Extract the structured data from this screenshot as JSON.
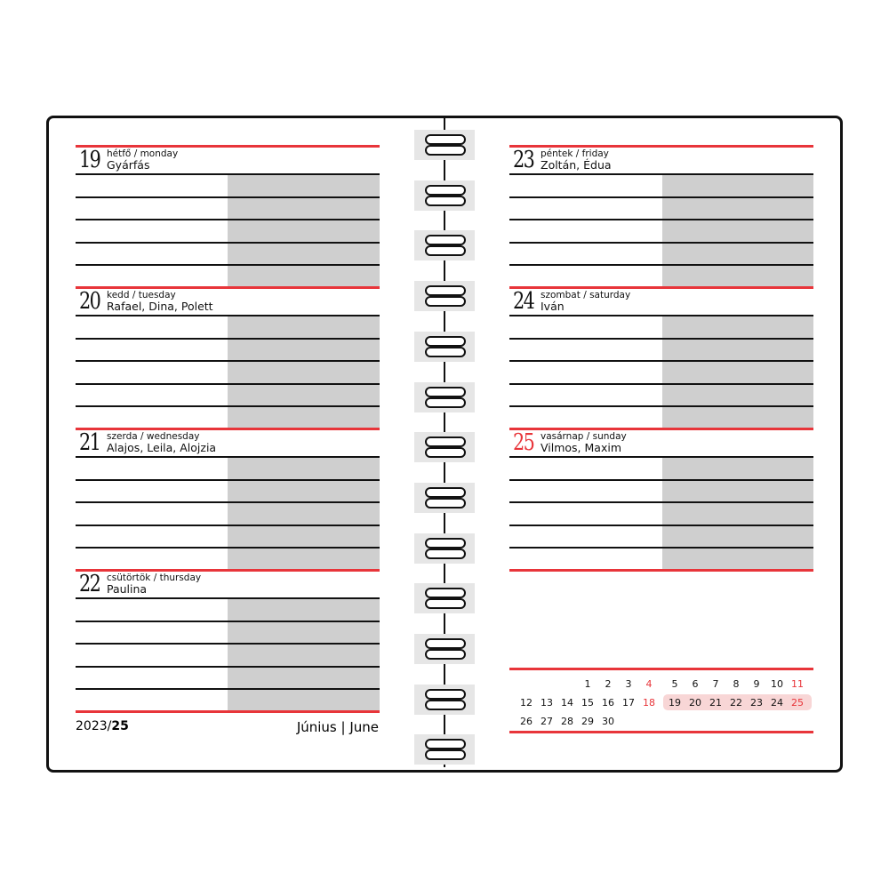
{
  "colors": {
    "accent": "#e8353a",
    "shade": "#cfcfcf",
    "highlight": "#f8d6d6"
  },
  "left_page": {
    "days": [
      {
        "number": "19",
        "weekday": "hétfő / monday",
        "names": "Gyárfás",
        "sunday": false
      },
      {
        "number": "20",
        "weekday": "kedd / tuesday",
        "names": "Rafael, Dina, Polett",
        "sunday": false
      },
      {
        "number": "21",
        "weekday": "szerda / wednesday",
        "names": "Alajos, Leila, Alojzia",
        "sunday": false
      },
      {
        "number": "22",
        "weekday": "csütörtök / thursday",
        "names": "Paulina",
        "sunday": false
      }
    ],
    "footer": {
      "year": "2023/",
      "week": "25",
      "month": "Június | June"
    }
  },
  "right_page": {
    "days": [
      {
        "number": "23",
        "weekday": "péntek / friday",
        "names": "Zoltán, Édua",
        "sunday": false
      },
      {
        "number": "24",
        "weekday": "szombat / saturday",
        "names": "Iván",
        "sunday": false
      },
      {
        "number": "25",
        "weekday": "vasárnap / sunday",
        "names": "Vilmos, Maxim",
        "sunday": true
      }
    ],
    "mini_calendar": {
      "rows": [
        {
          "left": [
            "",
            "",
            "",
            "1",
            "2",
            "3",
            "4"
          ],
          "right": [
            "5",
            "6",
            "7",
            "8",
            "9",
            "10",
            "11"
          ]
        },
        {
          "left": [
            "12",
            "13",
            "14",
            "15",
            "16",
            "17",
            "18"
          ],
          "right": [
            "19",
            "20",
            "21",
            "22",
            "23",
            "24",
            "25"
          ]
        },
        {
          "left": [
            "26",
            "27",
            "28",
            "29",
            "30",
            "",
            ""
          ],
          "right": [
            "",
            "",
            "",
            "",
            "",
            "",
            ""
          ]
        }
      ],
      "sundays": [
        "4",
        "11",
        "18",
        "25"
      ],
      "current_week": [
        "19",
        "20",
        "21",
        "22",
        "23",
        "24",
        "25"
      ]
    }
  },
  "binding": {
    "icon": "spiral-ring-icon",
    "ring_count": 13
  }
}
